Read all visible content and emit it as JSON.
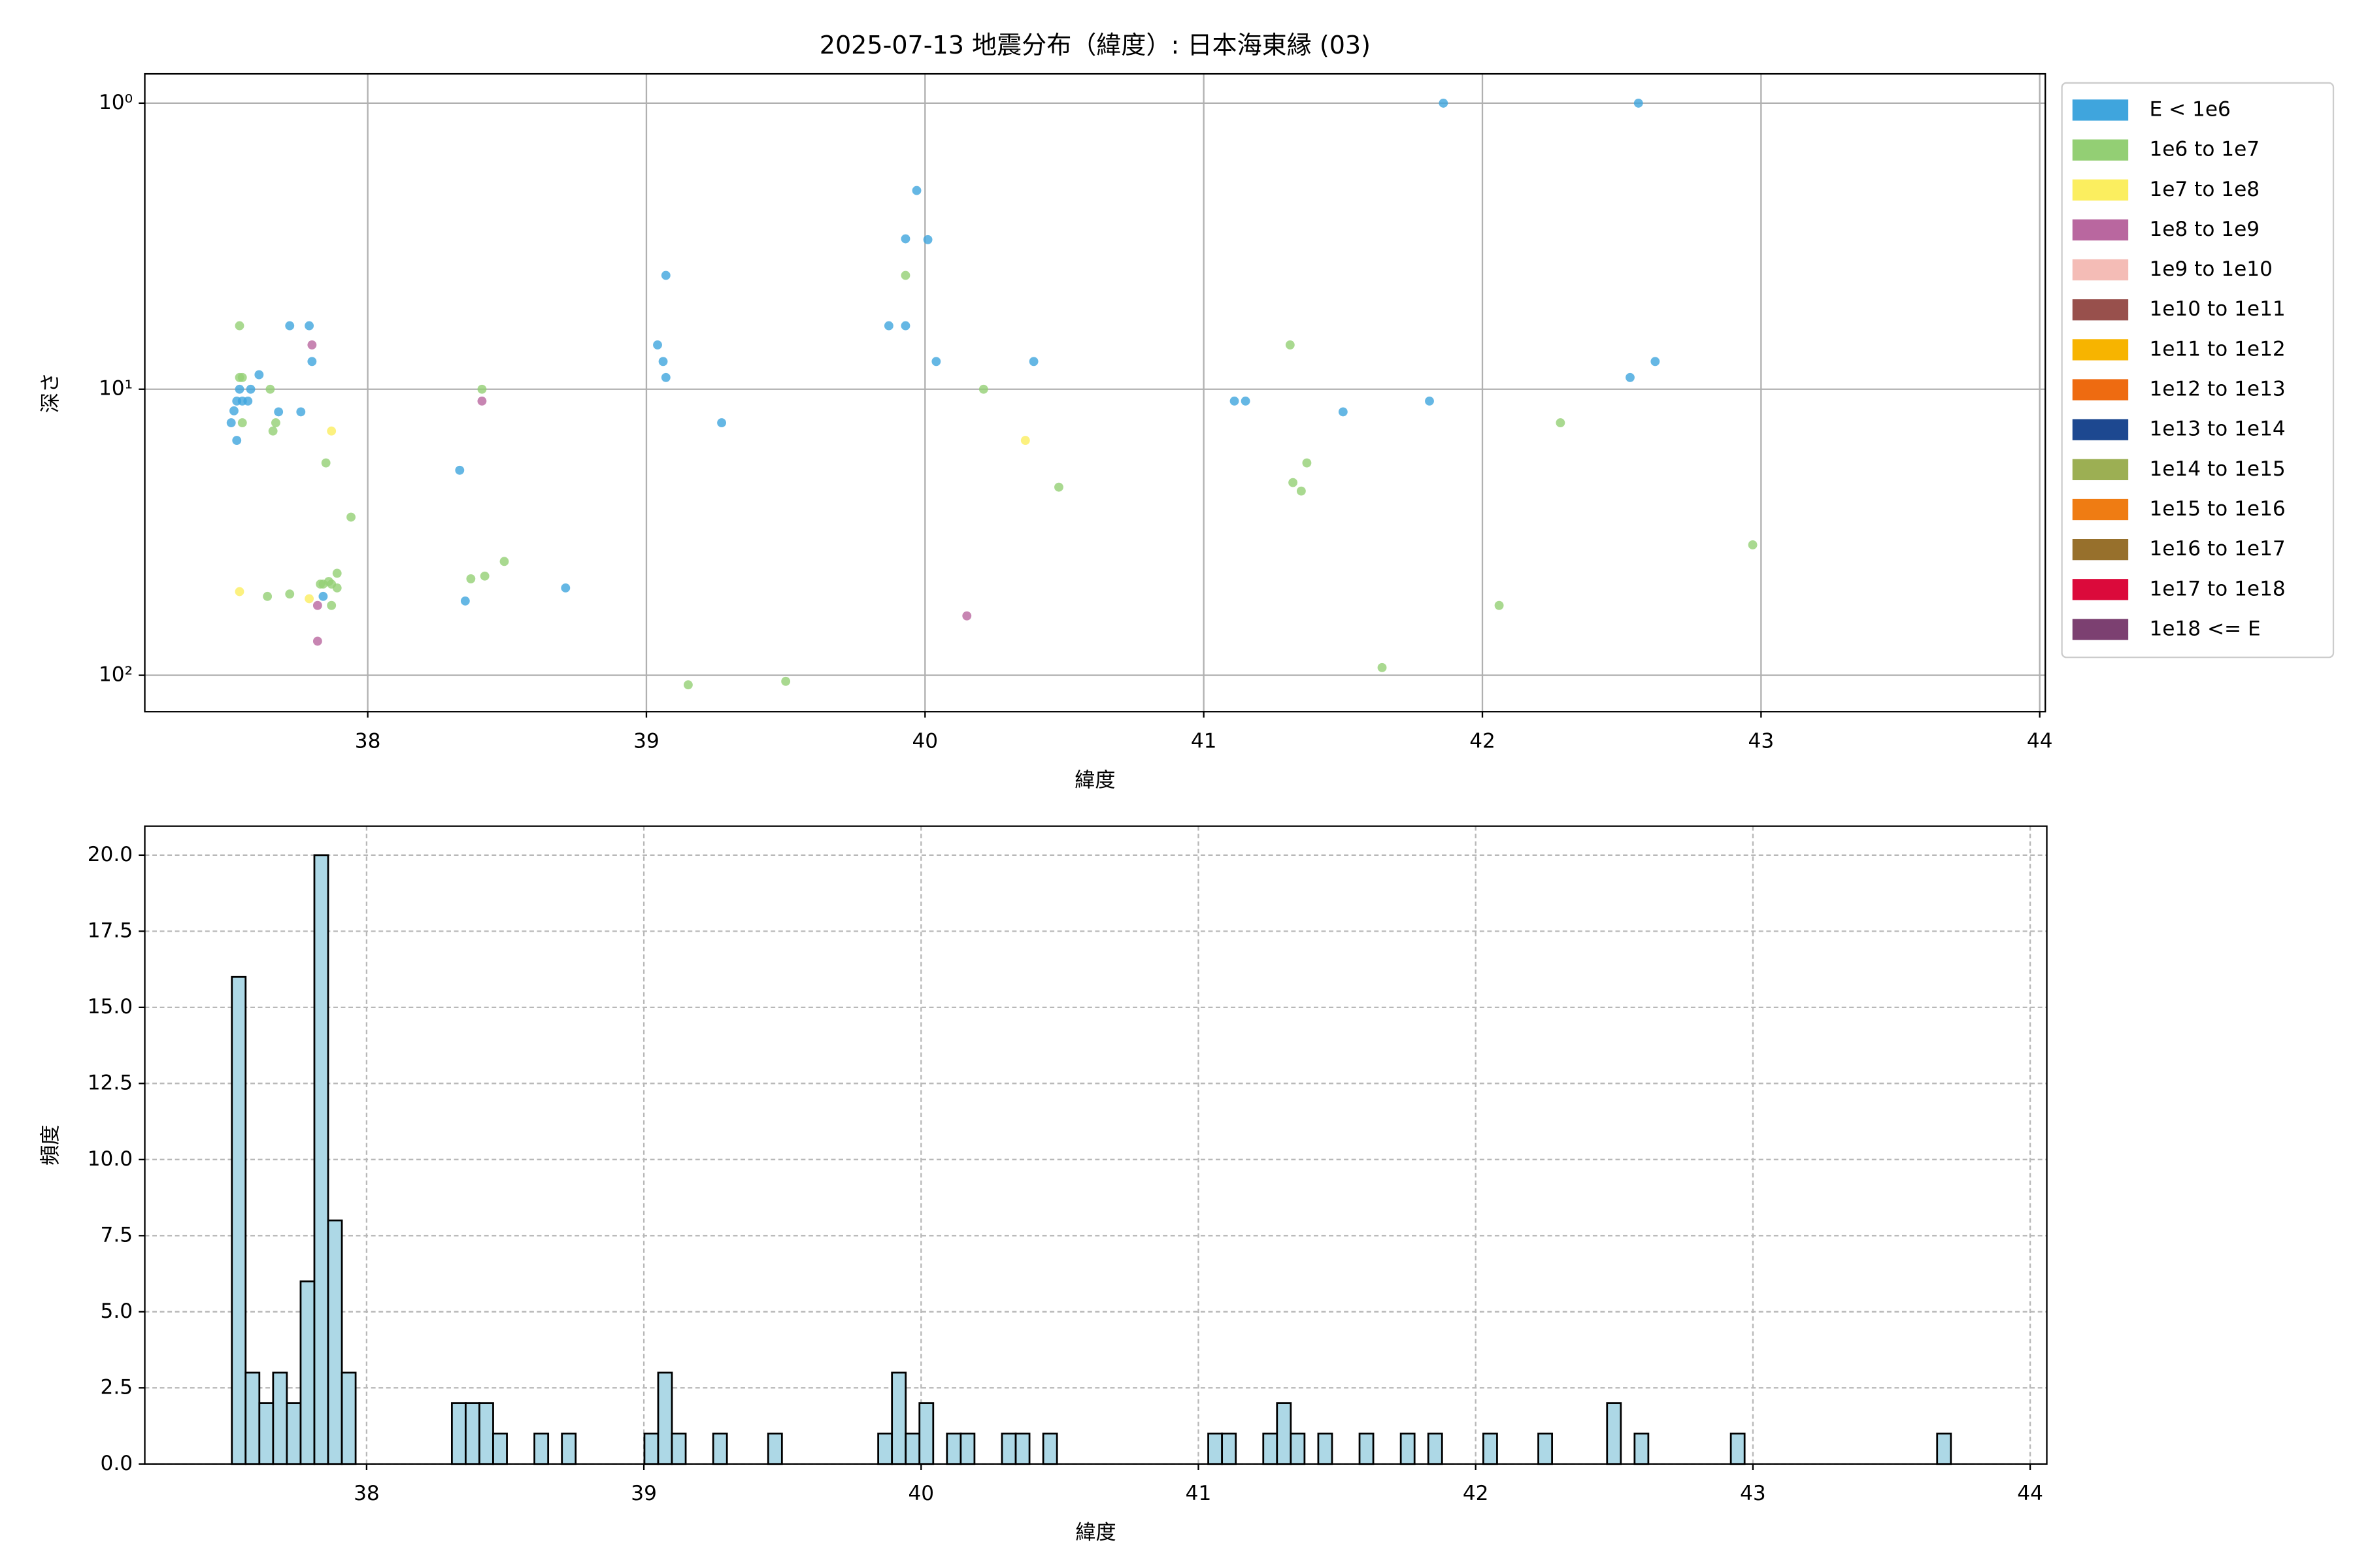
{
  "chart_data": [
    {
      "type": "scatter",
      "title": "2025-07-13 地震分布（緯度）: 日本海東縁 (03)",
      "xlabel": "緯度",
      "ylabel": "深さ",
      "xlim": [
        37.2,
        44.02
      ],
      "ylim": [
        0.79,
        134
      ],
      "log_y": true,
      "y_inverted": true,
      "grid": true,
      "legend": "outside right",
      "xticks": [
        38,
        39,
        40,
        41,
        42,
        43,
        44
      ],
      "yticks": [
        {
          "value": 1,
          "label": "10⁰"
        },
        {
          "value": 10,
          "label": "10¹"
        },
        {
          "value": 100,
          "label": "10²"
        }
      ],
      "series": [
        {
          "name": "E < 1e6",
          "color": "#3fa5dd",
          "x": [
            37.51,
            37.53,
            37.52,
            37.53,
            37.54,
            37.55,
            37.57,
            37.58,
            37.61,
            37.68,
            37.72,
            37.76,
            37.79,
            37.8,
            37.84,
            38.33,
            38.35,
            38.71,
            39.04,
            39.06,
            39.07,
            39.07,
            39.27,
            39.87,
            39.93,
            39.93,
            39.97,
            40.01,
            40.04,
            40.39,
            41.11,
            41.15,
            41.5,
            41.81,
            41.86,
            42.53,
            42.56,
            42.62
          ],
          "values": [
            13.1,
            15.1,
            11.9,
            11,
            10,
            11,
            11,
            10,
            8.9,
            12,
            6,
            12,
            6,
            8,
            53,
            19.2,
            55,
            49.5,
            7,
            8,
            9.1,
            4,
            13.1,
            6,
            6,
            2.98,
            2.02,
            3,
            8,
            8,
            11,
            11,
            12,
            11,
            1,
            9.1,
            1,
            8
          ]
        },
        {
          "name": "1e6 to 1e7",
          "color": "#93cf74",
          "x": [
            37.54,
            37.55,
            37.54,
            37.55,
            37.65,
            37.66,
            37.67,
            37.85,
            37.94,
            37.64,
            37.72,
            37.84,
            37.87,
            37.86,
            37.89,
            37.89,
            37.87,
            37.83,
            38.37,
            38.42,
            38.49,
            38.41,
            39.15,
            39.5,
            39.93,
            40.21,
            40.48,
            41.31,
            41.32,
            41.35,
            41.37,
            41.64,
            42.06,
            42.28,
            42.97
          ],
          "values": [
            6,
            9.1,
            9.1,
            13.1,
            10,
            14,
            13.1,
            18.1,
            28,
            53,
            52,
            48,
            48,
            47,
            44,
            49.5,
            57,
            48,
            46,
            45,
            40,
            10,
            108,
            105,
            4,
            10,
            22,
            7,
            21.2,
            22.7,
            18.1,
            94,
            57,
            13.1,
            35
          ]
        },
        {
          "name": "1e7 to 1e8",
          "color": "#fbee5f",
          "x": [
            37.54,
            37.79,
            37.87,
            40.36
          ],
          "values": [
            51,
            54,
            14,
            15.1
          ]
        },
        {
          "name": "1e8 to 1e9",
          "color": "#b9679f",
          "x": [
            37.8,
            38.41,
            37.82,
            37.82,
            40.15
          ],
          "values": [
            7,
            11,
            57,
            76,
            62
          ]
        },
        {
          "name": "1e9 to 1e10",
          "color": "#f4bcb6",
          "x": [],
          "values": []
        },
        {
          "name": "1e10 to 1e11",
          "color": "#98504c",
          "x": [],
          "values": []
        },
        {
          "name": "1e11 to 1e12",
          "color": "#f7b400",
          "x": [],
          "values": []
        },
        {
          "name": "1e12 to 1e13",
          "color": "#ee6b11",
          "x": [],
          "values": []
        },
        {
          "name": "1e13 to 1e14",
          "color": "#1d4890",
          "x": [],
          "values": []
        },
        {
          "name": "1e14 to 1e15",
          "color": "#9caf53",
          "x": [],
          "values": []
        },
        {
          "name": "1e15 to 1e16",
          "color": "#ef7c13",
          "x": [],
          "values": []
        },
        {
          "name": "1e16 to 1e17",
          "color": "#97702c",
          "x": [],
          "values": []
        },
        {
          "name": "1e17 to 1e18",
          "color": "#db0a3b",
          "x": [],
          "values": []
        },
        {
          "name": "1e18 <= E",
          "color": "#7c4071",
          "x": [],
          "values": []
        }
      ]
    },
    {
      "type": "histogram",
      "xlabel": "緯度",
      "ylabel": "頻度",
      "color": "#add8e6",
      "edgecolor": "#000000",
      "grid": "dashed",
      "xlim": [
        37.2,
        44.06
      ],
      "ylim": [
        0,
        20.95
      ],
      "xticks": [
        38,
        39,
        40,
        41,
        42,
        43,
        44
      ],
      "yticks": [
        {
          "value": 0,
          "label": "0.0"
        },
        2.5,
        {
          "value": 5,
          "label": "5.0"
        },
        7.5,
        {
          "value": 10,
          "label": "10.0"
        },
        12.5,
        {
          "value": 15,
          "label": "15.0"
        },
        17.5,
        {
          "value": 20,
          "label": "20.0"
        }
      ],
      "bins": [
        37.514,
        37.5636,
        37.6132,
        37.6628,
        37.7124,
        37.762,
        37.8116,
        37.8612,
        37.9108,
        37.9604,
        38.01,
        38.0596,
        38.1092,
        38.1588,
        38.2084,
        38.258,
        38.3076,
        38.3572,
        38.4068,
        38.4564,
        38.506,
        38.5556,
        38.6052,
        38.6548,
        38.7044,
        38.754,
        38.8036,
        38.8532,
        38.9028,
        38.9524,
        39.002,
        39.0516,
        39.1012,
        39.1508,
        39.2004,
        39.25,
        39.2996,
        39.3492,
        39.3988,
        39.4484,
        39.498,
        39.5476,
        39.5972,
        39.6468,
        39.6964,
        39.746,
        39.7956,
        39.8452,
        39.8948,
        39.9444,
        39.994,
        40.0436,
        40.0932,
        40.1428,
        40.1924,
        40.242,
        40.2916,
        40.3412,
        40.3908,
        40.4404,
        40.49,
        40.5396,
        40.5892,
        40.6388,
        40.6884,
        40.738,
        40.7876,
        40.8372,
        40.8868,
        40.9364,
        40.986,
        41.0356,
        41.0852,
        41.1348,
        41.1844,
        41.234,
        41.2836,
        41.3332,
        41.3828,
        41.4324,
        41.482,
        41.5316,
        41.5812,
        41.6308,
        41.6804,
        41.73,
        41.7796,
        41.8292,
        41.8788,
        41.9284,
        41.978,
        42.0276,
        42.0772,
        42.1268,
        42.1764,
        42.226,
        42.2756,
        42.3252,
        42.3748,
        42.4244,
        42.474,
        42.5236,
        42.5732,
        42.6228,
        42.6724,
        42.722,
        42.7716,
        42.8212,
        42.8708,
        42.9204,
        42.97,
        43.0196,
        43.0692,
        43.1188,
        43.1684,
        43.218,
        43.2676,
        43.3172,
        43.3668,
        43.4164,
        43.466,
        43.5156,
        43.5652,
        43.6148,
        43.6644,
        43.714
      ],
      "values": [
        16,
        3,
        2,
        3,
        2,
        6,
        20,
        8,
        3,
        0,
        0,
        0,
        0,
        0,
        0,
        0,
        2,
        2,
        2,
        1,
        0,
        0,
        1,
        0,
        1,
        0,
        0,
        0,
        0,
        0,
        1,
        3,
        1,
        0,
        0,
        1,
        0,
        0,
        0,
        1,
        0,
        0,
        0,
        0,
        0,
        0,
        0,
        1,
        3,
        1,
        2,
        0,
        1,
        1,
        0,
        0,
        1,
        1,
        0,
        1,
        0,
        0,
        0,
        0,
        0,
        0,
        0,
        0,
        0,
        0,
        0,
        1,
        1,
        0,
        0,
        1,
        2,
        1,
        0,
        1,
        0,
        0,
        1,
        0,
        0,
        1,
        0,
        1,
        0,
        0,
        0,
        1,
        0,
        0,
        0,
        1,
        0,
        0,
        0,
        0,
        2,
        0,
        1,
        0,
        0,
        0,
        0,
        0,
        0,
        1,
        0,
        0,
        0,
        0,
        0,
        0,
        0,
        0,
        0,
        0,
        0,
        0,
        0,
        0,
        1
      ]
    }
  ]
}
